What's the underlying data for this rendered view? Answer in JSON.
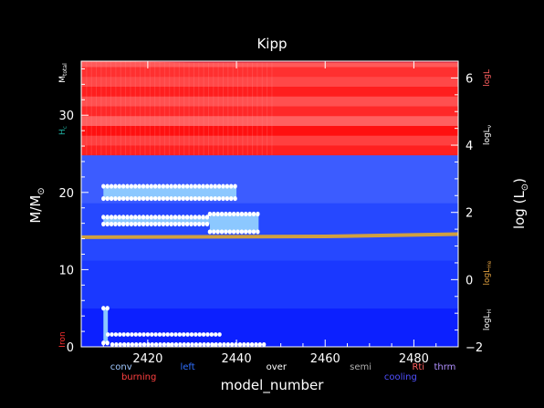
{
  "chart_data": {
    "type": "heatmap",
    "title": "Kipp",
    "xlabel": "model_number",
    "ylabel_left": "M/M",
    "ylabel_left_sub": "⊙",
    "ylabel_right": "log (L",
    "ylabel_right_sub": "⊙",
    "ylabel_right_close": ")",
    "xlim": [
      2405,
      2490
    ],
    "ylim_left": [
      0,
      37
    ],
    "ylim_right": [
      -2,
      6.5
    ],
    "x_ticks": [
      2420,
      2440,
      2460,
      2480
    ],
    "x_tick_labels": [
      "2420",
      "2440",
      "2460",
      "2480"
    ],
    "y_left_ticks": [
      0,
      10,
      20,
      30
    ],
    "y_left_tick_labels": [
      "0",
      "10",
      "20",
      "30"
    ],
    "y_right_ticks": [
      -2,
      0,
      2,
      4,
      6
    ],
    "y_right_tick_labels": [
      "−2",
      "0",
      "2",
      "4",
      "6"
    ],
    "grid": false,
    "left_side_labels": [
      {
        "text": "M",
        "sub": "total",
        "color": "#ffffff"
      },
      {
        "text": "H",
        "sub": "c",
        "color": "#20b0a0"
      },
      {
        "text": "Iron",
        "sub": "",
        "color": "#ff3030"
      }
    ],
    "right_side_labels": [
      {
        "text": "logL",
        "sub": "",
        "color": "#ff6060",
        "y": 6
      },
      {
        "text": "logL",
        "sub": "ν",
        "color": "#ffffff",
        "y": 4.3
      },
      {
        "text": "logL",
        "sub": "He",
        "color": "#e0a040",
        "y": 0.2
      },
      {
        "text": "logL",
        "sub": "H",
        "color": "#ffffff",
        "y": -1.2
      }
    ],
    "legend": {
      "row1": [
        {
          "text": "conv",
          "color": "#a0c8ff",
          "x": 2414
        },
        {
          "text": "left",
          "color": "#3070ff",
          "x": 2429
        },
        {
          "text": "over",
          "color": "#ffffff",
          "x": 2449
        },
        {
          "text": "semi",
          "color": "#b0b0b0",
          "x": 2468
        },
        {
          "text": "Rti",
          "color": "#ff6060",
          "x": 2481
        },
        {
          "text": "thrm",
          "color": "#b090ff",
          "x": 2487
        }
      ],
      "row2": [
        {
          "text": "burning",
          "color": "#ff4040",
          "x": 2418
        },
        {
          "text": "cooling",
          "color": "#5050ff",
          "x": 2477
        }
      ]
    },
    "regions": {
      "burning_bands_mass": [
        [
          24.8,
          37.5
        ]
      ],
      "cooling_zones_mass": [
        [
          0,
          24.8
        ]
      ],
      "convective_blocks": [
        {
          "x": [
            2410,
            2440
          ],
          "m": [
            19.2,
            20.8
          ]
        },
        {
          "x": [
            2410,
            2434
          ],
          "m": [
            15.9,
            16.8
          ]
        },
        {
          "x": [
            2434,
            2445
          ],
          "m": [
            14.9,
            17.2
          ]
        },
        {
          "x": [
            2410,
            2411
          ],
          "m": [
            0.5,
            5.0
          ]
        }
      ],
      "overshoot_rows": [
        {
          "x": [
            2411,
            2437
          ],
          "m": 1.6
        },
        {
          "x": [
            2412,
            2447
          ],
          "m": 0.3
        }
      ],
      "he_core_boundary_m": [
        [
          2405,
          14.2
        ],
        [
          2460,
          14.3
        ],
        [
          2490,
          14.6
        ]
      ],
      "luminosity_logL": [
        [
          2405,
          6.55
        ],
        [
          2430,
          6.5
        ],
        [
          2490,
          6.5
        ]
      ],
      "total_mass_m": [
        [
          2405,
          37.4
        ],
        [
          2490,
          37.2
        ]
      ]
    }
  }
}
